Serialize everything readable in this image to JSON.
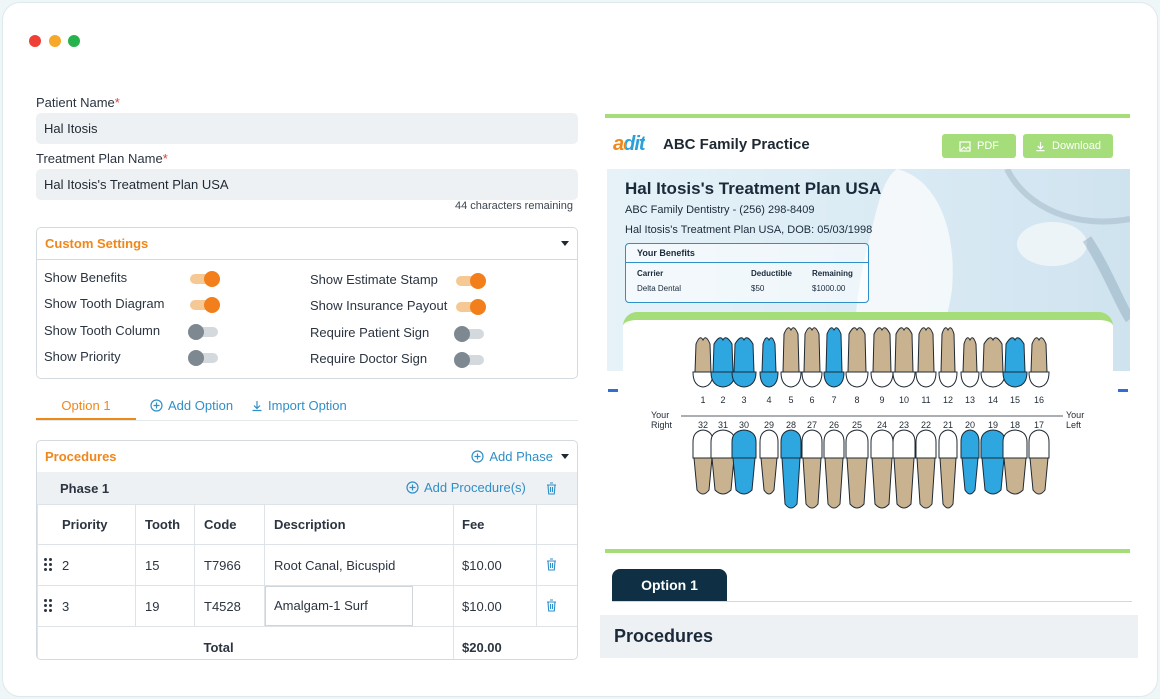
{
  "form": {
    "patient_name_label": "Patient Name",
    "patient_name_value": "Hal Itosis",
    "plan_name_label": "Treatment Plan Name",
    "plan_name_value": "Hal Itosis's Treatment Plan USA",
    "chars_remaining": "44 characters remaining",
    "required_mark": "*"
  },
  "settings": {
    "title": "Custom Settings",
    "left": [
      {
        "label": "Show Benefits",
        "on": true
      },
      {
        "label": "Show Tooth Diagram",
        "on": true
      },
      {
        "label": "Show Tooth Column",
        "on": false
      },
      {
        "label": "Show Priority",
        "on": false
      }
    ],
    "right": [
      {
        "label": "Show Estimate Stamp",
        "on": true
      },
      {
        "label": "Show Insurance Payout",
        "on": true
      },
      {
        "label": "Require Patient Sign",
        "on": false
      },
      {
        "label": "Require Doctor Sign",
        "on": false
      }
    ]
  },
  "tabs": {
    "active": "Option 1",
    "add_option": "Add Option",
    "import_option": "Import Option"
  },
  "procedures": {
    "title": "Procedures",
    "add_phase": "Add Phase",
    "phase_name": "Phase 1",
    "add_procedures": "Add Procedure(s)",
    "columns": [
      "Priority",
      "Tooth",
      "Code",
      "Description",
      "Fee"
    ],
    "rows": [
      {
        "priority": "2",
        "tooth": "15",
        "code": "T7966",
        "description": "Root Canal, Bicuspid",
        "fee": "$10.00"
      },
      {
        "priority": "3",
        "tooth": "19",
        "code": "T4528",
        "description": "Amalgam-1 Surf",
        "fee": "$10.00"
      }
    ],
    "total_label": "Total",
    "total_value": "$20.00"
  },
  "preview": {
    "logo": "adit",
    "practice": "ABC Family Practice",
    "pdf_btn": "PDF",
    "download_btn": "Download",
    "plan_title": "Hal Itosis's Treatment Plan USA",
    "contact_line": "ABC Family Dentistry - (256) 298-8409",
    "dob_line": "Hal Itosis's Treatment Plan USA, DOB: 05/03/1998",
    "benefits": {
      "title": "Your Benefits",
      "headers": [
        "Carrier",
        "Deductible",
        "Remaining"
      ],
      "values": [
        "Delta Dental",
        "$50",
        "$1000.00"
      ]
    },
    "upper_numbers": [
      "1",
      "2",
      "3",
      "4",
      "5",
      "6",
      "7",
      "8",
      "9",
      "10",
      "11",
      "12",
      "13",
      "14",
      "15",
      "16"
    ],
    "lower_numbers": [
      "32",
      "31",
      "30",
      "29",
      "28",
      "27",
      "26",
      "25",
      "24",
      "23",
      "22",
      "21",
      "20",
      "19",
      "18",
      "17"
    ],
    "upper_highlight": [
      "2",
      "3",
      "4",
      "7",
      "15"
    ],
    "lower_highlight": [
      "30",
      "28",
      "20",
      "19"
    ],
    "your_right": "Your Right",
    "your_left": "Your Left",
    "option_tab": "Option 1",
    "procedures_heading": "Procedures"
  },
  "colors": {
    "accent_orange": "#f0871a",
    "link_blue": "#2f8fc9",
    "green": "#a6dd7b",
    "tooth_blue": "#2ea6e0",
    "tooth_tan": "#c9b28f",
    "navy": "#0f2f44"
  }
}
